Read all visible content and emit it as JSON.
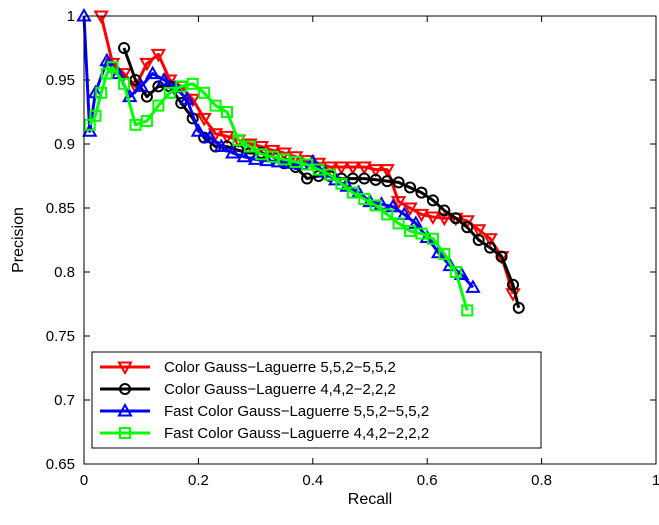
{
  "chart_data": {
    "type": "line",
    "title": "",
    "xlabel": "Recall",
    "ylabel": "Precision",
    "xlim": [
      0,
      1
    ],
    "ylim": [
      0.65,
      1
    ],
    "x_ticks": [
      "0",
      "0.2",
      "0.4",
      "0.6",
      "0.8",
      "1"
    ],
    "y_ticks": [
      "0.65",
      "0.7",
      "0.75",
      "0.8",
      "0.85",
      "0.9",
      "0.95",
      "1"
    ],
    "grid": false,
    "legend_position": "bottom-left",
    "series": [
      {
        "name": "Color Gauss−Laguerre 5,5,2−5,5,2",
        "color": "#ff0000",
        "marker": "triangle-down",
        "x": [
          0.03,
          0.05,
          0.07,
          0.09,
          0.11,
          0.13,
          0.15,
          0.17,
          0.19,
          0.21,
          0.23,
          0.25,
          0.27,
          0.29,
          0.31,
          0.33,
          0.35,
          0.37,
          0.39,
          0.41,
          0.43,
          0.45,
          0.47,
          0.49,
          0.51,
          0.53,
          0.55,
          0.57,
          0.59,
          0.61,
          0.63,
          0.65,
          0.67,
          0.69,
          0.71,
          0.73,
          0.75
        ],
        "y": [
          1.0,
          0.963,
          0.955,
          0.945,
          0.963,
          0.97,
          0.95,
          0.945,
          0.935,
          0.92,
          0.908,
          0.906,
          0.903,
          0.9,
          0.898,
          0.895,
          0.893,
          0.89,
          0.887,
          0.885,
          0.882,
          0.882,
          0.882,
          0.882,
          0.88,
          0.88,
          0.855,
          0.85,
          0.845,
          0.843,
          0.842,
          0.842,
          0.84,
          0.833,
          0.826,
          0.812,
          0.783
        ]
      },
      {
        "name": "Color Gauss−Laguerre 4,4,2−2,2,2",
        "color": "#000000",
        "marker": "circle",
        "x": [
          0.07,
          0.09,
          0.11,
          0.13,
          0.15,
          0.17,
          0.19,
          0.21,
          0.23,
          0.25,
          0.27,
          0.29,
          0.31,
          0.33,
          0.35,
          0.37,
          0.39,
          0.41,
          0.43,
          0.45,
          0.47,
          0.49,
          0.51,
          0.53,
          0.55,
          0.57,
          0.59,
          0.61,
          0.63,
          0.65,
          0.67,
          0.69,
          0.71,
          0.73,
          0.75,
          0.76
        ],
        "y": [
          0.975,
          0.95,
          0.937,
          0.945,
          0.945,
          0.932,
          0.92,
          0.905,
          0.898,
          0.898,
          0.895,
          0.893,
          0.893,
          0.89,
          0.885,
          0.882,
          0.873,
          0.875,
          0.875,
          0.873,
          0.873,
          0.873,
          0.872,
          0.871,
          0.87,
          0.866,
          0.862,
          0.856,
          0.848,
          0.842,
          0.835,
          0.825,
          0.819,
          0.812,
          0.79,
          0.772
        ]
      },
      {
        "name": "Fast Color Gauss−Laguerre 5,5,2−5,5,2",
        "color": "#0000ff",
        "marker": "triangle-up",
        "x": [
          0.0,
          0.01,
          0.02,
          0.04,
          0.06,
          0.08,
          0.1,
          0.12,
          0.14,
          0.16,
          0.18,
          0.2,
          0.22,
          0.24,
          0.26,
          0.28,
          0.3,
          0.32,
          0.34,
          0.36,
          0.38,
          0.4,
          0.42,
          0.44,
          0.46,
          0.48,
          0.5,
          0.52,
          0.54,
          0.56,
          0.58,
          0.6,
          0.62,
          0.64,
          0.66,
          0.68
        ],
        "y": [
          1.0,
          0.91,
          0.94,
          0.965,
          0.955,
          0.937,
          0.945,
          0.955,
          0.95,
          0.944,
          0.935,
          0.91,
          0.905,
          0.898,
          0.893,
          0.89,
          0.888,
          0.887,
          0.886,
          0.885,
          0.884,
          0.886,
          0.878,
          0.872,
          0.867,
          0.862,
          0.855,
          0.853,
          0.851,
          0.845,
          0.838,
          0.827,
          0.815,
          0.805,
          0.798,
          0.788
        ]
      },
      {
        "name": "Fast Color Gauss−Laguerre 4,4,2−2,2,2",
        "color": "#00ff00",
        "marker": "square",
        "x": [
          0.01,
          0.02,
          0.03,
          0.04,
          0.05,
          0.07,
          0.09,
          0.11,
          0.13,
          0.15,
          0.17,
          0.19,
          0.21,
          0.23,
          0.25,
          0.27,
          0.29,
          0.31,
          0.33,
          0.35,
          0.37,
          0.39,
          0.41,
          0.43,
          0.45,
          0.47,
          0.49,
          0.51,
          0.53,
          0.55,
          0.57,
          0.59,
          0.61,
          0.63,
          0.65,
          0.67
        ],
        "y": [
          0.915,
          0.922,
          0.94,
          0.955,
          0.96,
          0.947,
          0.915,
          0.918,
          0.93,
          0.94,
          0.945,
          0.947,
          0.94,
          0.93,
          0.925,
          0.903,
          0.898,
          0.892,
          0.89,
          0.888,
          0.886,
          0.884,
          0.88,
          0.876,
          0.869,
          0.862,
          0.857,
          0.852,
          0.845,
          0.838,
          0.832,
          0.83,
          0.826,
          0.814,
          0.8,
          0.77
        ]
      }
    ]
  }
}
